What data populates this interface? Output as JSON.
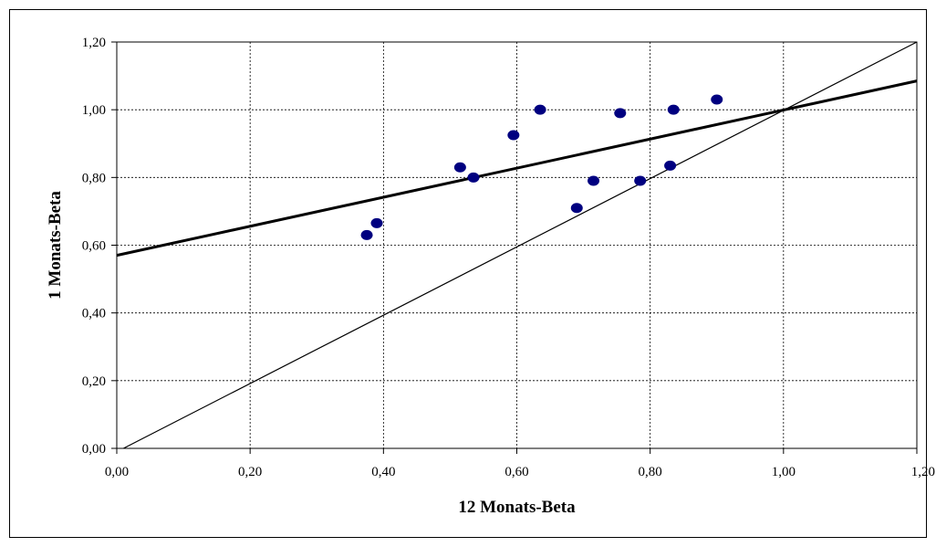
{
  "chart_data": {
    "type": "scatter",
    "title": "",
    "xlabel": "12 Monats-Beta",
    "ylabel": "1 Monats-Beta",
    "xlim": [
      0,
      1.2
    ],
    "ylim": [
      0,
      1.2
    ],
    "x_ticks": [
      "0,00",
      "0,20",
      "0,40",
      "0,60",
      "0,80",
      "1,00",
      "1,20"
    ],
    "y_ticks": [
      "0,00",
      "0,20",
      "0,40",
      "0,60",
      "0,80",
      "1,00",
      "1,20"
    ],
    "grid": true,
    "legend": "none",
    "marker_color": "#000080",
    "points": [
      {
        "x": 0.375,
        "y": 0.63
      },
      {
        "x": 0.39,
        "y": 0.665
      },
      {
        "x": 0.515,
        "y": 0.83
      },
      {
        "x": 0.535,
        "y": 0.8
      },
      {
        "x": 0.595,
        "y": 0.925
      },
      {
        "x": 0.635,
        "y": 1.0
      },
      {
        "x": 0.69,
        "y": 0.71
      },
      {
        "x": 0.715,
        "y": 0.79
      },
      {
        "x": 0.755,
        "y": 0.99
      },
      {
        "x": 0.785,
        "y": 0.79
      },
      {
        "x": 0.83,
        "y": 0.835
      },
      {
        "x": 0.835,
        "y": 1.0
      },
      {
        "x": 0.9,
        "y": 1.03
      }
    ],
    "lines": [
      {
        "kind": "regression",
        "x": [
          0,
          1.2
        ],
        "y": [
          0.57,
          1.085
        ]
      },
      {
        "kind": "diagonal",
        "x": [
          0.01,
          1.2
        ],
        "y": [
          0,
          1.2
        ]
      }
    ]
  }
}
